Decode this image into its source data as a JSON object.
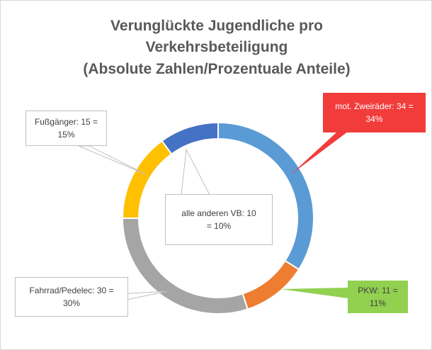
{
  "chart_data": {
    "type": "donut",
    "title": [
      "Verunglückte Jugendliche pro",
      "Verkehrsbeteiligung",
      "(Absolute Zahlen/Prozentuale Anteile)"
    ],
    "categories": [
      "mot. Zweiräder",
      "PKW",
      "Fahrrad/Pedelec",
      "Fußgänger",
      "alle anderen VB"
    ],
    "values": [
      34,
      11,
      30,
      15,
      10
    ],
    "value_labels": [
      "mot. Zweiräder: 34 = 34%",
      "PKW: 11 = 11%",
      "Fahrrad/Pedelec: 30 = 30%",
      "Fußgänger: 15 = 15%",
      "alle anderen VB: 10 = 10%"
    ],
    "colors": [
      "#5b9bd5",
      "#ed7d31",
      "#a5a5a5",
      "#ffc000",
      "#4472c4"
    ]
  }
}
